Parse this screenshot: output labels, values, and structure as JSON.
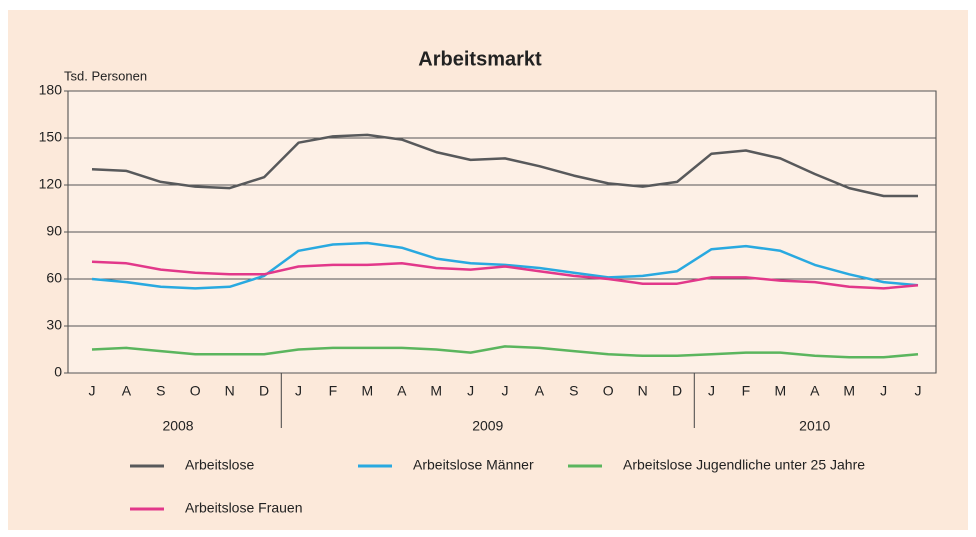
{
  "chart_data": {
    "type": "line",
    "title": "Arbeitsmarkt",
    "y_label": "Tsd. Personen",
    "categories": [
      "J",
      "A",
      "S",
      "O",
      "N",
      "D",
      "J",
      "F",
      "M",
      "A",
      "M",
      "J",
      "J",
      "A",
      "S",
      "O",
      "N",
      "D",
      "J",
      "F",
      "M",
      "A",
      "M",
      "J",
      "J"
    ],
    "x_groups": [
      {
        "label": "2008",
        "count": 6
      },
      {
        "label": "2009",
        "count": 12
      },
      {
        "label": "2010",
        "count": 7
      }
    ],
    "ylim": [
      0,
      180
    ],
    "yticks": [
      0,
      30,
      60,
      90,
      120,
      150,
      180
    ],
    "grid": true,
    "series": [
      {
        "name": "Arbeitslose",
        "color": "#58595b",
        "values": [
          130,
          129,
          122,
          119,
          118,
          125,
          147,
          151,
          152,
          149,
          141,
          136,
          137,
          132,
          126,
          121,
          119,
          122,
          140,
          142,
          137,
          127,
          118,
          113,
          113
        ]
      },
      {
        "name": "Arbeitslose Männer",
        "color": "#29a9e0",
        "values": [
          60,
          58,
          55,
          54,
          55,
          62,
          78,
          82,
          83,
          80,
          73,
          70,
          69,
          67,
          64,
          61,
          62,
          65,
          79,
          81,
          78,
          69,
          63,
          58,
          56
        ]
      },
      {
        "name": "Arbeitslose Jugendliche unter 25 Jahre",
        "color": "#5bb55e",
        "values": [
          15,
          16,
          14,
          12,
          12,
          12,
          15,
          16,
          16,
          16,
          15,
          13,
          17,
          16,
          14,
          12,
          11,
          11,
          12,
          13,
          13,
          11,
          10,
          10,
          12
        ]
      },
      {
        "name": "Arbeitslose Frauen",
        "color": "#e2388a",
        "values": [
          71,
          70,
          66,
          64,
          63,
          63,
          68,
          69,
          69,
          70,
          67,
          66,
          68,
          65,
          62,
          60,
          57,
          57,
          61,
          61,
          59,
          58,
          55,
          54,
          56
        ]
      }
    ]
  }
}
